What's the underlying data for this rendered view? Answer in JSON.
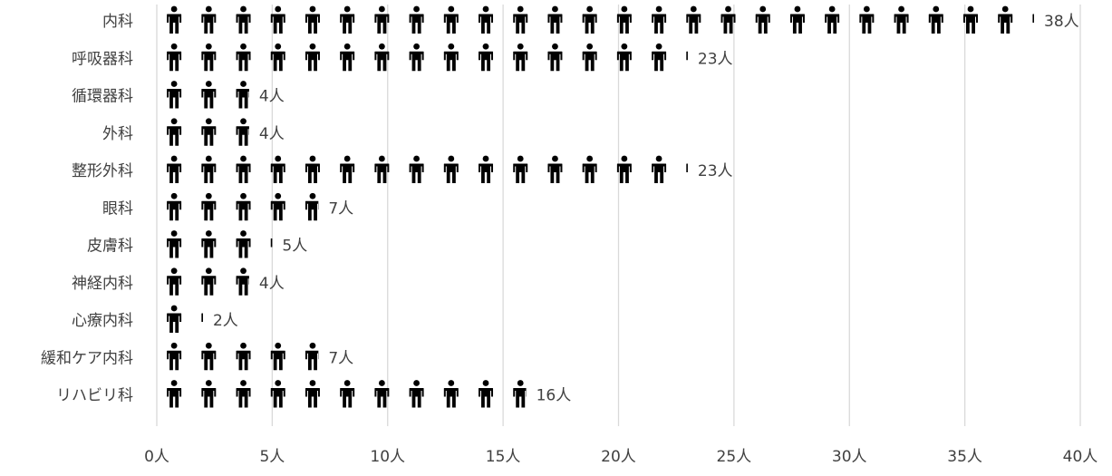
{
  "chart_data": {
    "type": "bar",
    "orientation": "horizontal",
    "style": "pictograph",
    "categories": [
      "内科",
      "呼吸器科",
      "循環器科",
      "外科",
      "整形外科",
      "眼科",
      "皮膚科",
      "神経内科",
      "心療内科",
      "緩和ケア内科",
      "リハビリ科"
    ],
    "values": [
      38,
      23,
      4,
      4,
      23,
      7,
      5,
      4,
      2,
      7,
      16
    ],
    "value_labels": [
      "38人",
      "23人",
      "4人",
      "4人",
      "23人",
      "7人",
      "5人",
      "4人",
      "2人",
      "7人",
      "16人"
    ],
    "x_ticks": [
      0,
      5,
      10,
      15,
      20,
      25,
      30,
      35,
      40
    ],
    "x_tick_labels": [
      "0人",
      "5人",
      "10人",
      "15人",
      "20人",
      "25人",
      "30人",
      "35人",
      "40人"
    ],
    "xlim": [
      0,
      40
    ],
    "grid": true,
    "title": "",
    "xlabel": "",
    "ylabel": ""
  },
  "colors": {
    "icon": "#000000",
    "text": "#404040",
    "grid": "#d9d9d9",
    "background": "#ffffff"
  },
  "icon_name": "person-icon"
}
